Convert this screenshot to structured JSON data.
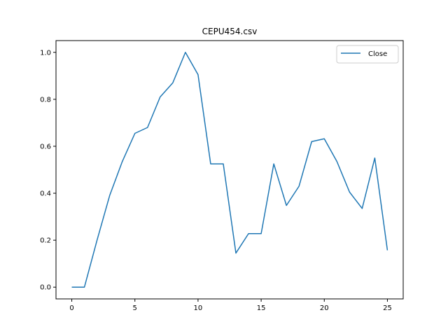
{
  "chart_data": {
    "type": "line",
    "title": "CEPU454.csv",
    "xlabel": "",
    "ylabel": "",
    "xlim": [
      -1.25,
      26.25
    ],
    "ylim": [
      -0.05,
      1.05
    ],
    "xticks": [
      0,
      5,
      10,
      15,
      20,
      25
    ],
    "yticks": [
      0.0,
      0.2,
      0.4,
      0.6,
      0.8,
      1.0
    ],
    "xtick_labels": [
      "0",
      "5",
      "10",
      "15",
      "20",
      "25"
    ],
    "ytick_labels": [
      "0.0",
      "0.2",
      "0.4",
      "0.6",
      "0.8",
      "1.0"
    ],
    "grid": false,
    "legend_position": "top-right",
    "series": [
      {
        "name": "Close",
        "color": "#1f77b4",
        "x": [
          0,
          1,
          2,
          3,
          4,
          5,
          6,
          7,
          8,
          9,
          10,
          11,
          12,
          13,
          14,
          15,
          16,
          17,
          18,
          19,
          20,
          21,
          22,
          23,
          24,
          25
        ],
        "values": [
          0.0,
          0.0,
          0.2,
          0.39,
          0.535,
          0.655,
          0.68,
          0.81,
          0.87,
          1.0,
          0.905,
          0.525,
          0.525,
          0.145,
          0.228,
          0.228,
          0.525,
          0.348,
          0.43,
          0.62,
          0.632,
          0.535,
          0.405,
          0.335,
          0.55,
          0.157
        ]
      }
    ]
  }
}
